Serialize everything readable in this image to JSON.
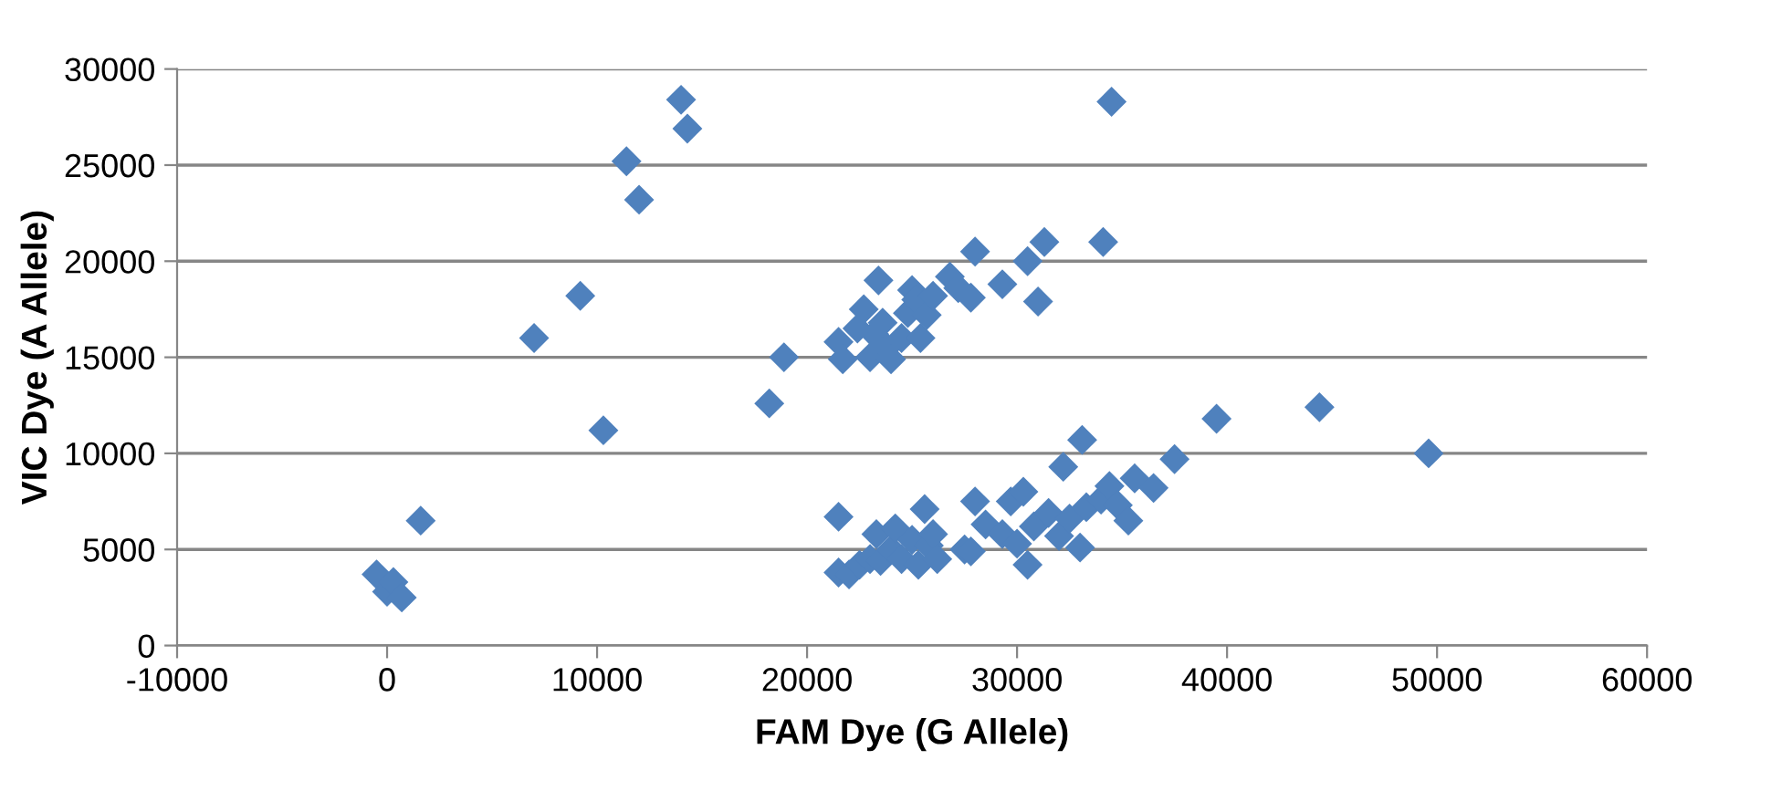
{
  "chart_data": {
    "type": "scatter",
    "xlabel": "FAM Dye (G Allele)",
    "ylabel": "VIC Dye (A Allele)",
    "xlim": [
      -10000,
      60000
    ],
    "xticks": [
      -10000,
      0,
      10000,
      20000,
      30000,
      40000,
      50000,
      60000
    ],
    "ylim": [
      0,
      30000
    ],
    "yticks": [
      0,
      5000,
      10000,
      15000,
      20000,
      25000,
      30000
    ],
    "grid": "y",
    "marker": "diamond",
    "legend": false,
    "series": [
      {
        "color": "#4f81bd",
        "x": [
          -500,
          0,
          300,
          700,
          1600,
          7000,
          9200,
          10300,
          11400,
          12000,
          14000,
          14300,
          18200,
          18900,
          21500,
          21700,
          22400,
          22700,
          23000,
          23200,
          23400,
          23600,
          23800,
          24000,
          24500,
          24800,
          25000,
          25200,
          25400,
          25700,
          26000,
          26800,
          27200,
          27800,
          28000,
          29300,
          30500,
          31000,
          31300,
          34100,
          34500,
          21500,
          21500,
          22000,
          22500,
          23000,
          23300,
          23500,
          24000,
          24200,
          24500,
          25000,
          25300,
          25600,
          25800,
          26000,
          26200,
          27500,
          27800,
          28000,
          28500,
          29300,
          29700,
          30000,
          30300,
          30500,
          30800,
          31500,
          32000,
          32200,
          32500,
          33000,
          33100,
          33300,
          34000,
          34400,
          34800,
          35300,
          35600,
          36500,
          37500,
          39500,
          44400,
          49600
        ],
        "values": [
          3700,
          2800,
          3300,
          2500,
          6500,
          16000,
          18200,
          11200,
          25200,
          23200,
          28400,
          26900,
          12600,
          15000,
          15800,
          14900,
          16500,
          17500,
          15000,
          16200,
          19000,
          16800,
          15500,
          14900,
          16000,
          17300,
          18500,
          18000,
          16000,
          17200,
          18200,
          19200,
          18600,
          18100,
          20500,
          18800,
          20000,
          17900,
          21000,
          21000,
          28300,
          6700,
          3800,
          3700,
          4200,
          4500,
          5800,
          4400,
          5000,
          6100,
          4500,
          5500,
          4200,
          7100,
          5200,
          5800,
          4500,
          5000,
          4900,
          7500,
          6300,
          5800,
          7500,
          5300,
          8000,
          4200,
          6200,
          6900,
          5700,
          9300,
          6600,
          5100,
          10700,
          7200,
          7600,
          8300,
          7300,
          6500,
          8700,
          8200,
          9700,
          11800,
          12400,
          10000
        ]
      }
    ]
  }
}
